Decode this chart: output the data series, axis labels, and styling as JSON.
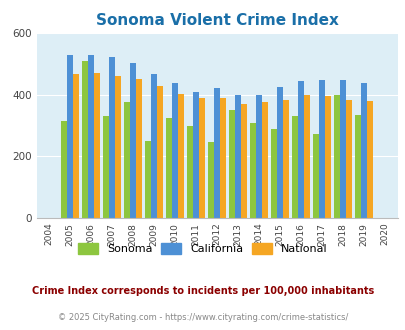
{
  "title": "Sonoma Violent Crime Index",
  "years": [
    2004,
    2005,
    2006,
    2007,
    2008,
    2009,
    2010,
    2011,
    2012,
    2013,
    2014,
    2015,
    2016,
    2017,
    2018,
    2019,
    2020
  ],
  "sonoma": [
    null,
    315,
    510,
    330,
    375,
    248,
    325,
    298,
    245,
    350,
    308,
    288,
    330,
    272,
    398,
    333,
    null
  ],
  "california": [
    null,
    530,
    530,
    522,
    503,
    468,
    438,
    410,
    422,
    400,
    400,
    425,
    445,
    448,
    448,
    438,
    null
  ],
  "national": [
    null,
    468,
    470,
    462,
    452,
    428,
    403,
    388,
    390,
    368,
    375,
    383,
    400,
    395,
    383,
    378,
    null
  ],
  "colors": {
    "sonoma": "#8dc63f",
    "california": "#4d90d5",
    "national": "#f5a623"
  },
  "ylim": [
    0,
    600
  ],
  "yticks": [
    0,
    200,
    400,
    600
  ],
  "bg_color": "#ddeef6",
  "legend_labels": [
    "Sonoma",
    "California",
    "National"
  ],
  "footnote1": "Crime Index corresponds to incidents per 100,000 inhabitants",
  "footnote2": "© 2025 CityRating.com - https://www.cityrating.com/crime-statistics/",
  "title_color": "#1a6fa8",
  "footnote1_color": "#8b0000",
  "footnote2_color": "#888888"
}
